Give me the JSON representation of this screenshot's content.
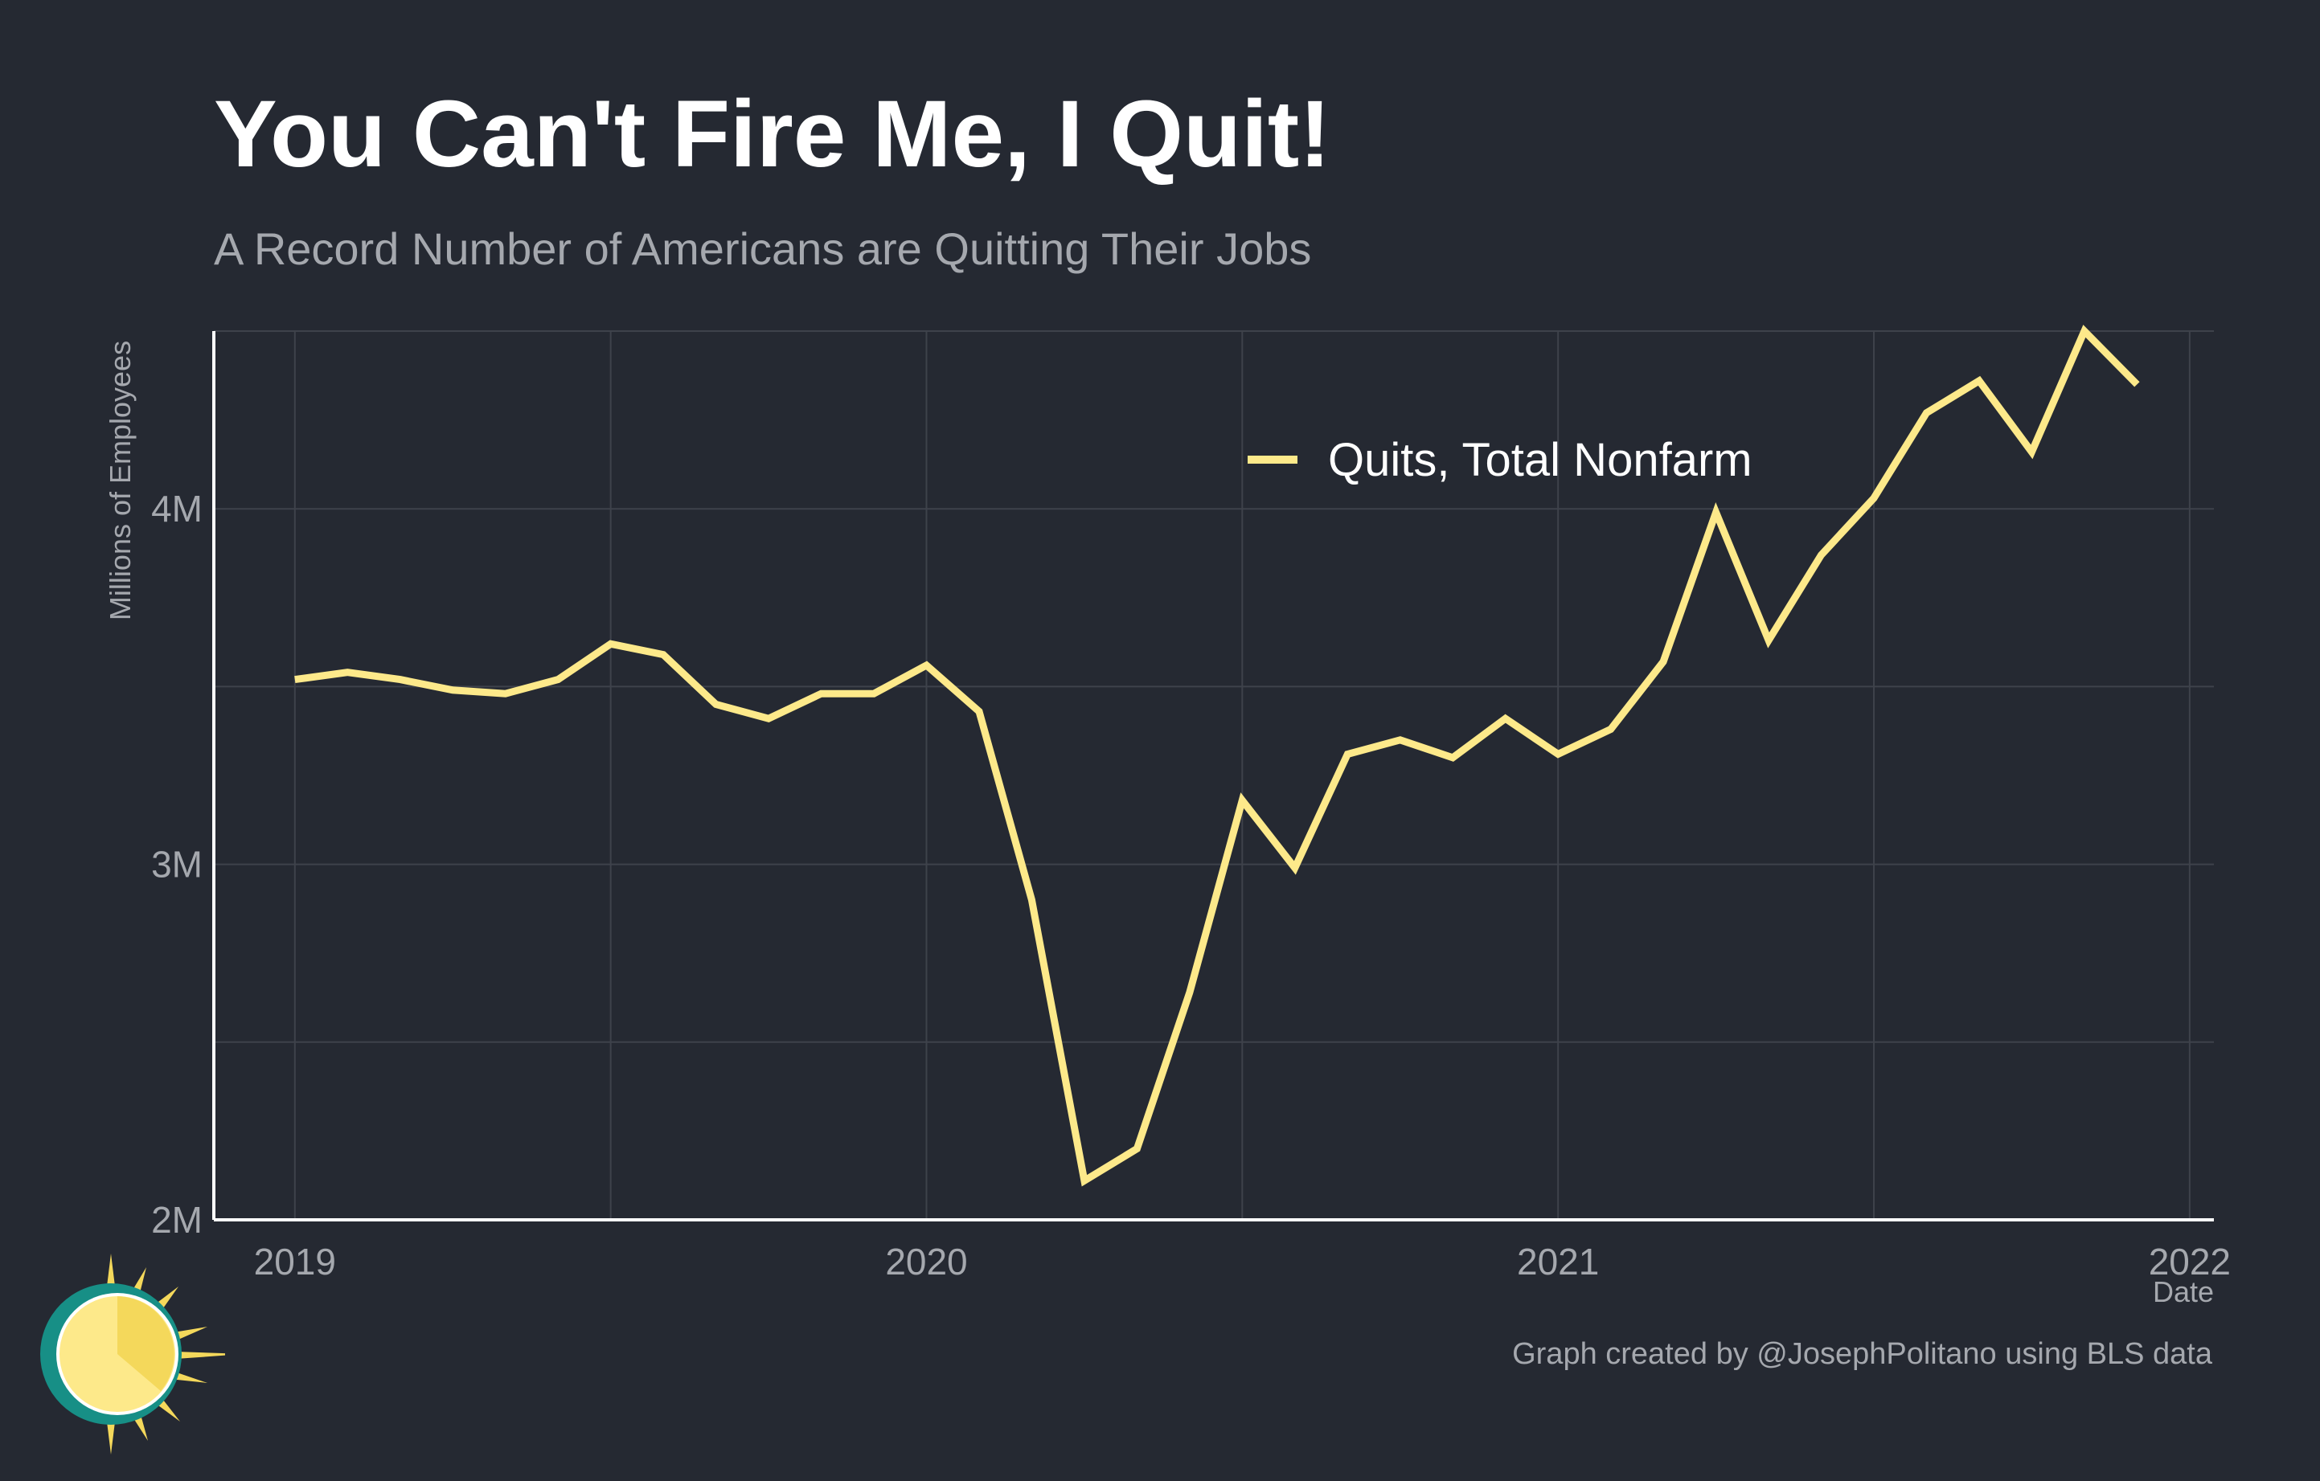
{
  "title": "You Can't Fire Me, I Quit!",
  "subtitle": "A Record Number of Americans are Quitting Their Jobs",
  "caption": "Graph created by @JosephPolitano using BLS data",
  "colors": {
    "background": "#252932",
    "line": "#fde98a",
    "grid": "#3e424b",
    "axis": "#ffffff",
    "text_muted": "#a5a8ae"
  },
  "chart_data": {
    "type": "line",
    "xlabel": "Date",
    "ylabel": "Millions of Employees",
    "x_ticks": [
      "2019",
      "2020",
      "2021",
      "2022"
    ],
    "y_ticks": [
      "2M",
      "3M",
      "4M"
    ],
    "ylim": [
      2.0,
      4.5
    ],
    "xlim": [
      "2018-11-15",
      "2022-01-15"
    ],
    "grid": true,
    "legend_position": "top-center",
    "series": [
      {
        "name": "Quits, Total Nonfarm",
        "color": "#fde98a",
        "x": [
          "2019-01",
          "2019-02",
          "2019-03",
          "2019-04",
          "2019-05",
          "2019-06",
          "2019-07",
          "2019-08",
          "2019-09",
          "2019-10",
          "2019-11",
          "2019-12",
          "2020-01",
          "2020-02",
          "2020-03",
          "2020-04",
          "2020-05",
          "2020-06",
          "2020-07",
          "2020-08",
          "2020-09",
          "2020-10",
          "2020-11",
          "2020-12",
          "2021-01",
          "2021-02",
          "2021-03",
          "2021-04",
          "2021-05",
          "2021-06",
          "2021-07",
          "2021-08",
          "2021-09",
          "2021-10",
          "2021-11",
          "2021-12"
        ],
        "values": [
          3.52,
          3.54,
          3.52,
          3.49,
          3.48,
          3.52,
          3.62,
          3.59,
          3.45,
          3.41,
          3.48,
          3.48,
          3.56,
          3.43,
          2.9,
          2.11,
          2.2,
          2.64,
          3.18,
          2.99,
          3.31,
          3.35,
          3.3,
          3.41,
          3.31,
          3.38,
          3.57,
          3.99,
          3.63,
          3.87,
          4.03,
          4.27,
          4.36,
          4.16,
          4.5,
          4.35
        ]
      }
    ]
  }
}
